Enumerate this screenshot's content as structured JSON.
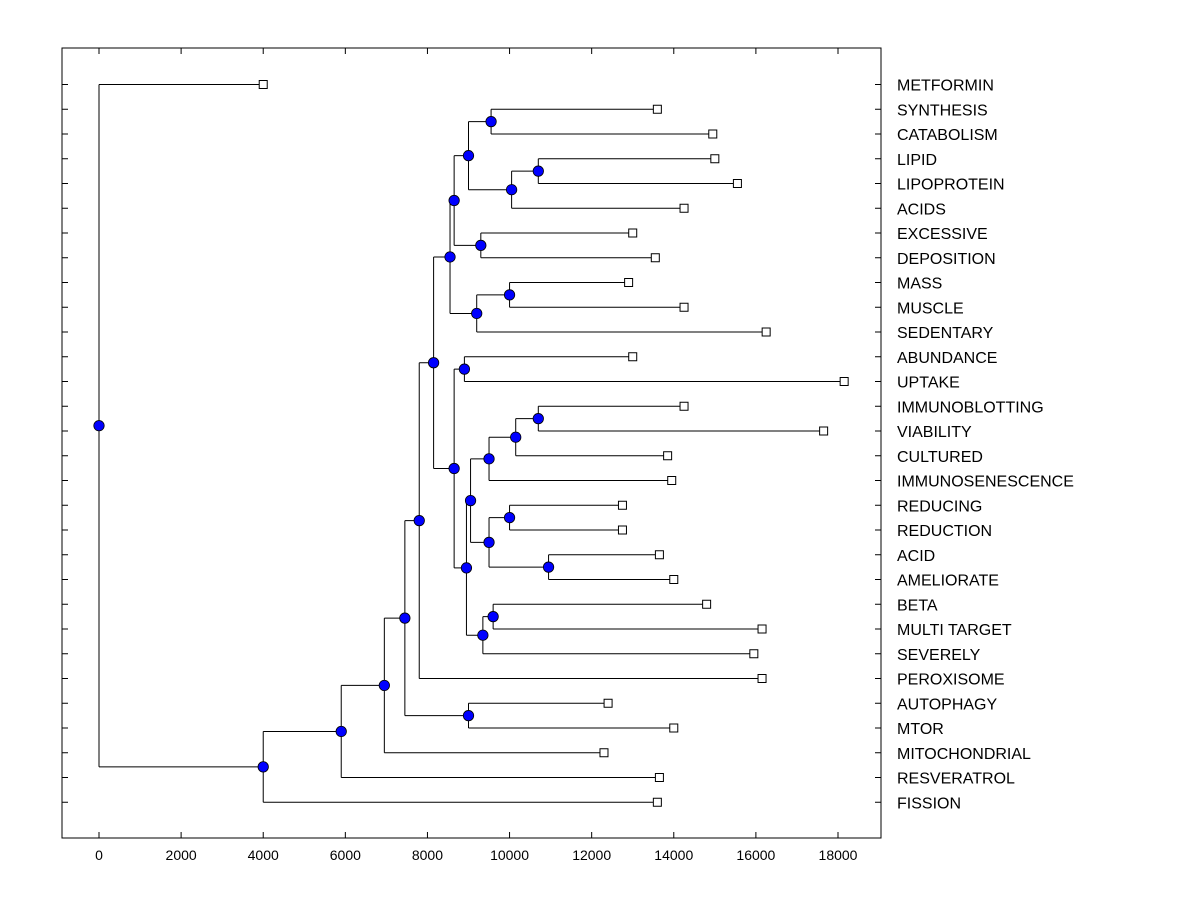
{
  "chart_data": {
    "type": "dendrogram",
    "title": "",
    "xlabel": "",
    "ylabel": "",
    "xlim": [
      -900,
      19000
    ],
    "x_ticks": [
      0,
      2000,
      4000,
      6000,
      8000,
      10000,
      12000,
      14000,
      16000,
      18000
    ],
    "colors": {
      "node_fill": "#0000FF",
      "line": "#000000",
      "leaf_fill": "#FFFFFF"
    },
    "leaves": [
      {
        "label": "METFORMIN",
        "x": 4000
      },
      {
        "label": "SYNTHESIS",
        "x": 13600
      },
      {
        "label": "CATABOLISM",
        "x": 14950
      },
      {
        "label": "LIPID",
        "x": 15000
      },
      {
        "label": "LIPOPROTEIN",
        "x": 15550
      },
      {
        "label": "ACIDS",
        "x": 14250
      },
      {
        "label": "EXCESSIVE",
        "x": 13000
      },
      {
        "label": "DEPOSITION",
        "x": 13550
      },
      {
        "label": "MASS",
        "x": 12900
      },
      {
        "label": "MUSCLE",
        "x": 14250
      },
      {
        "label": "SEDENTARY",
        "x": 16250
      },
      {
        "label": "ABUNDANCE",
        "x": 13000
      },
      {
        "label": "UPTAKE",
        "x": 18150
      },
      {
        "label": "IMMUNOBLOTTING",
        "x": 14250
      },
      {
        "label": "VIABILITY",
        "x": 17650
      },
      {
        "label": "CULTURED",
        "x": 13850
      },
      {
        "label": "IMMUNOSENESCENCE",
        "x": 13950
      },
      {
        "label": "REDUCING",
        "x": 12750
      },
      {
        "label": "REDUCTION",
        "x": 12750
      },
      {
        "label": "ACID",
        "x": 13650
      },
      {
        "label": "AMELIORATE",
        "x": 14000
      },
      {
        "label": "BETA",
        "x": 14800
      },
      {
        "label": "MULTI TARGET",
        "x": 16150
      },
      {
        "label": "SEVERELY",
        "x": 15950
      },
      {
        "label": "PEROXISOME",
        "x": 16150
      },
      {
        "label": "AUTOPHAGY",
        "x": 12400
      },
      {
        "label": "MTOR",
        "x": 14000
      },
      {
        "label": "MITOCHONDRIAL",
        "x": 12300
      },
      {
        "label": "RESVERATROL",
        "x": 13650
      },
      {
        "label": "FISSION",
        "x": 13600
      }
    ],
    "merges": [
      {
        "id": "n1",
        "x": 9550,
        "children": [
          "SYNTHESIS",
          "CATABOLISM"
        ]
      },
      {
        "id": "n2",
        "x": 10700,
        "children": [
          "LIPID",
          "LIPOPROTEIN"
        ]
      },
      {
        "id": "n3",
        "x": 10050,
        "children": [
          "n2",
          "ACIDS"
        ]
      },
      {
        "id": "n4",
        "x": 9000,
        "children": [
          "n1",
          "n3"
        ]
      },
      {
        "id": "n5",
        "x": 9300,
        "children": [
          "EXCESSIVE",
          "DEPOSITION"
        ]
      },
      {
        "id": "n6",
        "x": 8650,
        "children": [
          "n4",
          "n5"
        ]
      },
      {
        "id": "n7",
        "x": 10000,
        "children": [
          "MASS",
          "MUSCLE"
        ]
      },
      {
        "id": "n8",
        "x": 9200,
        "children": [
          "n7",
          "SEDENTARY"
        ]
      },
      {
        "id": "n9",
        "x": 8550,
        "children": [
          "n6",
          "n8"
        ]
      },
      {
        "id": "n10",
        "x": 8900,
        "children": [
          "ABUNDANCE",
          "UPTAKE"
        ]
      },
      {
        "id": "n11",
        "x": 10700,
        "children": [
          "IMMUNOBLOTTING",
          "VIABILITY"
        ]
      },
      {
        "id": "n12",
        "x": 10150,
        "children": [
          "n11",
          "CULTURED"
        ]
      },
      {
        "id": "n13",
        "x": 9500,
        "children": [
          "n12",
          "IMMUNOSENESCENCE"
        ]
      },
      {
        "id": "n14",
        "x": 10000,
        "children": [
          "REDUCING",
          "REDUCTION"
        ]
      },
      {
        "id": "n15",
        "x": 10950,
        "children": [
          "ACID",
          "AMELIORATE"
        ]
      },
      {
        "id": "n16",
        "x": 9500,
        "children": [
          "n14",
          "n15"
        ]
      },
      {
        "id": "n17",
        "x": 9050,
        "children": [
          "n13",
          "n16"
        ]
      },
      {
        "id": "n18",
        "x": 9600,
        "children": [
          "BETA",
          "MULTI TARGET"
        ]
      },
      {
        "id": "n19",
        "x": 9350,
        "children": [
          "n18",
          "SEVERELY"
        ]
      },
      {
        "id": "n20",
        "x": 8950,
        "children": [
          "n17",
          "n19"
        ]
      },
      {
        "id": "n21",
        "x": 8650,
        "children": [
          "n10",
          "n20"
        ]
      },
      {
        "id": "n22",
        "x": 8150,
        "children": [
          "n9",
          "n21"
        ]
      },
      {
        "id": "n23",
        "x": 7800,
        "children": [
          "n22",
          "PEROXISOME"
        ]
      },
      {
        "id": "n24",
        "x": 9000,
        "children": [
          "AUTOPHAGY",
          "MTOR"
        ]
      },
      {
        "id": "n25",
        "x": 7450,
        "children": [
          "n23",
          "n24"
        ]
      },
      {
        "id": "n26",
        "x": 6950,
        "children": [
          "n25",
          "MITOCHONDRIAL"
        ]
      },
      {
        "id": "n27",
        "x": 5900,
        "children": [
          "n26",
          "RESVERATROL"
        ]
      },
      {
        "id": "n28",
        "x": 4000,
        "children": [
          "n27",
          "FISSION"
        ]
      },
      {
        "id": "n29",
        "x": 0,
        "children": [
          "METFORMIN",
          "n28"
        ]
      }
    ]
  }
}
